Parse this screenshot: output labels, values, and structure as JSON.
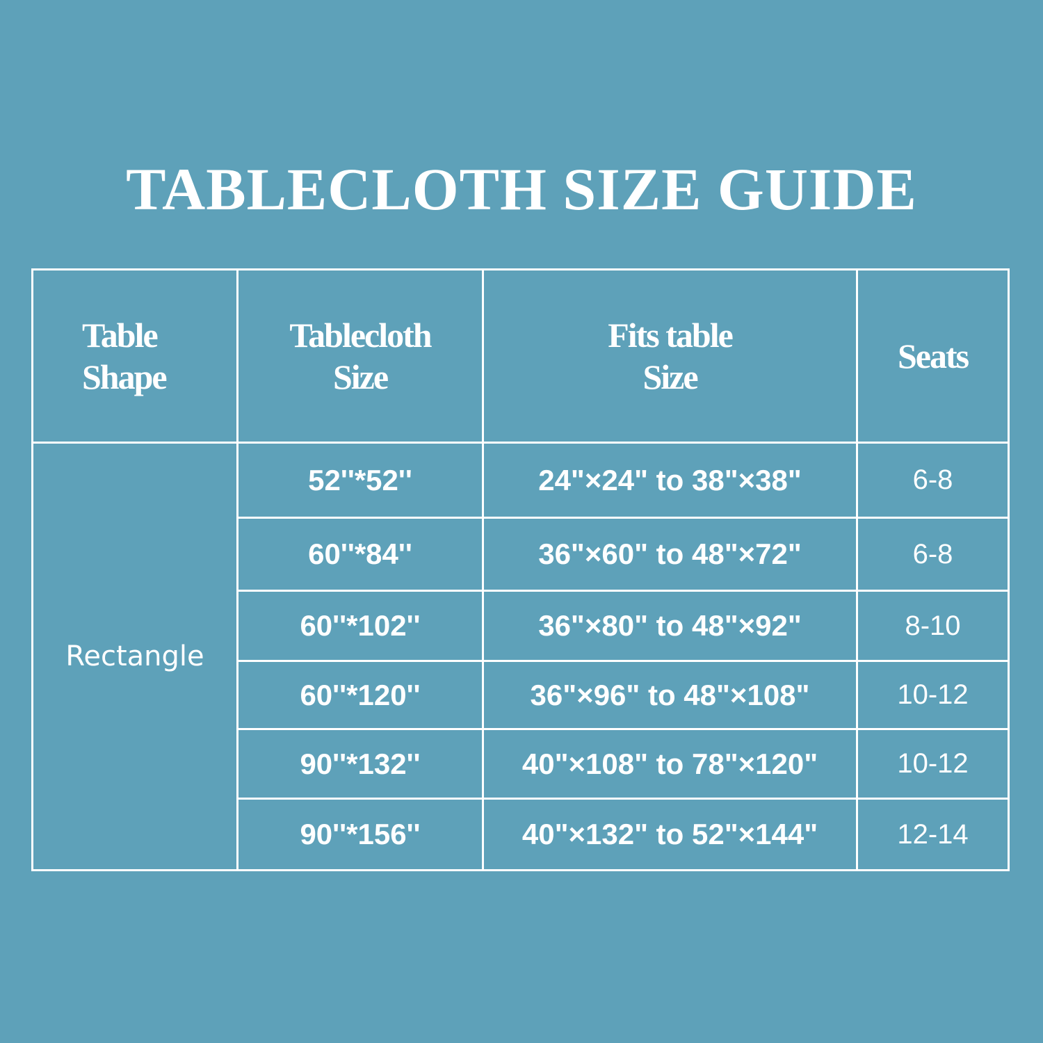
{
  "title": "TABLECLOTH SIZE GUIDE",
  "colors": {
    "background": "#5ea1b9",
    "text": "#ffffff",
    "grid": "#ffffff"
  },
  "table": {
    "headers": [
      {
        "line1": "Table",
        "line2": "Shape"
      },
      {
        "line1": "Tablecloth",
        "line2": "Size"
      },
      {
        "line1": "Fits table",
        "line2": "Size"
      },
      {
        "line1": "Seats",
        "line2": ""
      }
    ],
    "shape": "Rectangle",
    "rows": [
      {
        "cloth": "52''*52''",
        "fits": "24\"×24\" to 38\"×38\"",
        "seats": "6-8"
      },
      {
        "cloth": "60''*84''",
        "fits": "36\"×60\" to 48\"×72\"",
        "seats": "6-8"
      },
      {
        "cloth": "60''*102''",
        "fits": "36\"×80\" to 48\"×92\"",
        "seats": "8-10"
      },
      {
        "cloth": "60''*120''",
        "fits": "36\"×96\" to 48\"×108\"",
        "seats": "10-12"
      },
      {
        "cloth": "90''*132''",
        "fits": "40\"×108\" to 78\"×120\"",
        "seats": "10-12"
      },
      {
        "cloth": "90''*156''",
        "fits": "40\"×132\" to 52\"×144\"",
        "seats": "12-14"
      }
    ]
  }
}
